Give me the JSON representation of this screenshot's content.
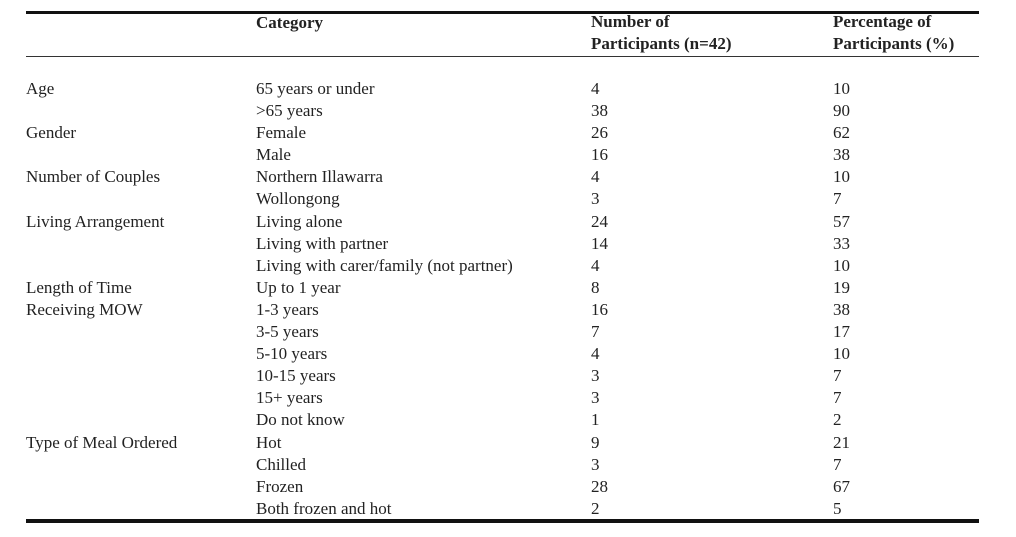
{
  "table": {
    "headers": {
      "category": "Category",
      "number_line1": "Number of",
      "number_line2": "Participants (n=42)",
      "percentage_line1": "Percentage of",
      "percentage_line2": "Participants (%)"
    },
    "rows": [
      {
        "group": "Age",
        "category": "65 years or under",
        "number": "4",
        "percentage": "10"
      },
      {
        "group": "",
        "category": ">65 years",
        "number": "38",
        "percentage": "90"
      },
      {
        "group": "Gender",
        "category": "Female",
        "number": "26",
        "percentage": "62"
      },
      {
        "group": "",
        "category": "Male",
        "number": "16",
        "percentage": "38"
      },
      {
        "group": "Number of Couples",
        "category": "Northern Illawarra",
        "number": "4",
        "percentage": "10"
      },
      {
        "group": "",
        "category": "Wollongong",
        "number": "3",
        "percentage": "7"
      },
      {
        "group": "Living Arrangement",
        "category": "Living alone",
        "number": "24",
        "percentage": "57"
      },
      {
        "group": "",
        "category": "Living with partner",
        "number": "14",
        "percentage": "33"
      },
      {
        "group": "",
        "category": "Living with carer/family (not partner)",
        "number": "4",
        "percentage": "10"
      },
      {
        "group": "Length of Time",
        "category": "Up to 1 year",
        "number": "8",
        "percentage": "19"
      },
      {
        "group": "Receiving MOW",
        "category": "1-3 years",
        "number": "16",
        "percentage": "38"
      },
      {
        "group": "",
        "category": "3-5 years",
        "number": "7",
        "percentage": "17"
      },
      {
        "group": "",
        "category": "5-10 years",
        "number": "4",
        "percentage": "10"
      },
      {
        "group": "",
        "category": "10-15 years",
        "number": "3",
        "percentage": "7"
      },
      {
        "group": "",
        "category": "15+ years",
        "number": "3",
        "percentage": "7"
      },
      {
        "group": "",
        "category": "Do not know",
        "number": "1",
        "percentage": "2"
      },
      {
        "group": "Type of Meal Ordered",
        "category": "Hot",
        "number": "9",
        "percentage": "21"
      },
      {
        "group": "",
        "category": "Chilled",
        "number": "3",
        "percentage": "7"
      },
      {
        "group": "",
        "category": "Frozen",
        "number": "28",
        "percentage": "67"
      },
      {
        "group": "",
        "category": "Both frozen and hot",
        "number": "2",
        "percentage": "5"
      }
    ]
  }
}
